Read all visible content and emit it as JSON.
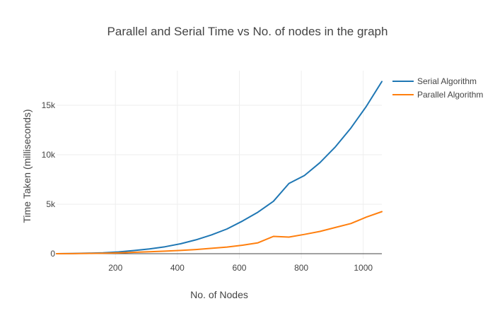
{
  "chart_data": {
    "type": "line",
    "title": "Parallel and Serial Time vs No. of nodes in the graph",
    "xlabel": "No. of Nodes",
    "ylabel": "Time Taken (milliseconds)",
    "xlim": [
      10,
      1060
    ],
    "ylim": [
      -500,
      18500
    ],
    "xticks": [
      200,
      400,
      600,
      800,
      1000
    ],
    "xtick_labels": [
      "200",
      "400",
      "600",
      "800",
      "1000"
    ],
    "yticks": [
      0,
      5000,
      10000,
      15000
    ],
    "ytick_labels": [
      "0",
      "5k",
      "10k",
      "15k"
    ],
    "grid": true,
    "legend_position": "top-right",
    "x": [
      10,
      60,
      110,
      160,
      210,
      260,
      310,
      360,
      410,
      460,
      510,
      560,
      610,
      660,
      710,
      760,
      810,
      860,
      910,
      960,
      1010,
      1060
    ],
    "series": [
      {
        "name": "Serial Algorithm",
        "color": "#1f77b4",
        "values": [
          0,
          20,
          50,
          90,
          180,
          320,
          480,
          700,
          1000,
          1400,
          1900,
          2500,
          3300,
          4200,
          5300,
          7100,
          7900,
          9200,
          10800,
          12700,
          14900,
          17400
        ]
      },
      {
        "name": "Parallel Algorithm",
        "color": "#ff7f0e",
        "values": [
          0,
          10,
          25,
          45,
          80,
          140,
          200,
          260,
          330,
          420,
          540,
          670,
          860,
          1100,
          1750,
          1680,
          1950,
          2250,
          2650,
          3050,
          3700,
          4250
        ]
      }
    ]
  }
}
